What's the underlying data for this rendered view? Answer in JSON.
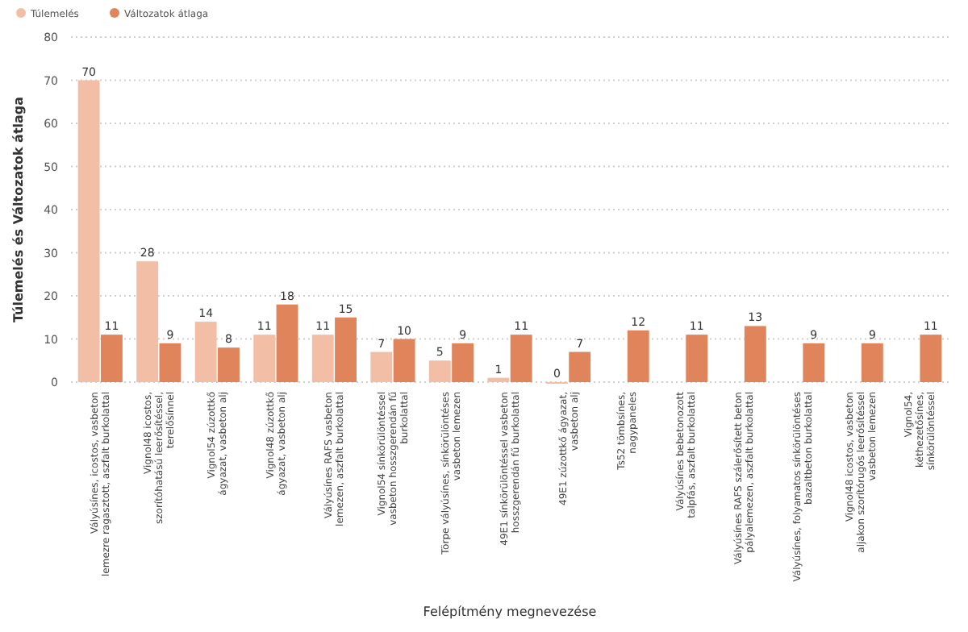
{
  "chart_data": {
    "type": "bar",
    "xlabel": "Felépítmény megnevezése",
    "ylabel": "Túlemelés és Változatok átlaga",
    "categories": [
      "Vályúsínes, icostos, vasbeton\nlemezre ragasztott, aszfalt burkolattal",
      "Vignol48 icostos,\nszorítóhatású leerősítéssel,\nterelősínnel",
      "Vignol54 zúzottkő\nágyazat, vasbeton alj",
      "Vignol48 zúzottkő\nágyazat, vasbeton alj",
      "Vályúsínes RAFS vasbeton\nlemezen, aszfalt burkolattal",
      "Vignol54 sínkörülöntéssel\nvasbeton hosszgerendán fű\nburkolattal",
      "Törpe vályúsínes, sínkörülöntéses\nvasbeton lemezen",
      "49E1 sínkörülöntéssel vasbeton\nhosszgerendán fű burkolattal",
      "49E1 zúzottkő ágyazat,\nvasbeton alj",
      "Ts52 tömbsínes,\nnagypaneles",
      "Vályúsínes bebetonozott\ntalpfás, aszfalt burkolattal",
      "Vályúsínes RAFS szálerősített beton\npályalemezen, aszfalt burkolattal",
      "Vályúsínes, folyamatos sínkörülöntéses\nbazaltbeton burkolattal",
      "Vignol48 icostos, vasbeton\naljakon szorítórugós leerősítéssel\nvasbeton lemezen",
      "Vignol54,\nkéthezetősínes,\nsínkörülöntéssel"
    ],
    "series": [
      {
        "name": "Túlemelés",
        "color": "#f2bfa6",
        "values": [
          70,
          28,
          14,
          11,
          11,
          7,
          5,
          1,
          0,
          null,
          null,
          null,
          null,
          null,
          null
        ]
      },
      {
        "name": "Változatok átlaga",
        "color": "#e0845c",
        "values": [
          11,
          9,
          8,
          18,
          15,
          10,
          9,
          11,
          7,
          12,
          11,
          13,
          9,
          9,
          11
        ]
      }
    ],
    "ylim": [
      0,
      80
    ],
    "yticks": [
      0,
      10,
      20,
      30,
      40,
      50,
      60,
      70,
      80
    ],
    "grid": "y",
    "legend": "top left",
    "data_labels": true
  }
}
